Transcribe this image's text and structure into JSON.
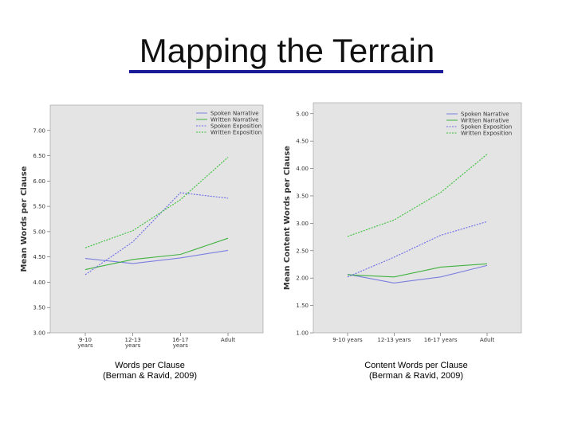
{
  "slide": {
    "title": "Mapping the Terrain"
  },
  "colors": {
    "spoken_narrative": "#7b7fe0",
    "written_narrative": "#3fb23f",
    "spoken_exposition": "#6a6ae8",
    "written_exposition": "#38c038",
    "plot_background": "#e4e4e4",
    "title_underline": "#1a1a99"
  },
  "chart_data": [
    {
      "type": "line",
      "title": "",
      "ylabel": "Mean Words per Clause",
      "xlabel": "",
      "categories": [
        "9-10 years",
        "12-13 years",
        "16-17 years",
        "Adult"
      ],
      "ylim": [
        3.0,
        7.5
      ],
      "yticks": [
        "3.00",
        "3.50",
        "4.00",
        "4.50",
        "5.00",
        "5.50",
        "6.00",
        "6.50",
        "7.00"
      ],
      "grid": false,
      "legend_position": "top-right",
      "series": [
        {
          "name": "Spoken Narrative",
          "style": "solid",
          "values": [
            4.47,
            4.37,
            4.48,
            4.63
          ]
        },
        {
          "name": "Written Narrative",
          "style": "solid",
          "values": [
            4.25,
            4.45,
            4.55,
            4.87
          ]
        },
        {
          "name": "Spoken Exposition",
          "style": "dashed",
          "values": [
            4.15,
            4.8,
            5.77,
            5.66
          ]
        },
        {
          "name": "Written Exposition",
          "style": "dashed",
          "values": [
            4.68,
            5.02,
            5.63,
            6.47
          ]
        }
      ]
    },
    {
      "type": "line",
      "title": "",
      "ylabel": "Mean Content Words per Clause",
      "xlabel": "",
      "categories": [
        "9-10 years",
        "12-13 years",
        "16-17 years",
        "Adult"
      ],
      "ylim": [
        1.0,
        5.2
      ],
      "yticks": [
        "1.00",
        "1.50",
        "2.00",
        "2.50",
        "3.00",
        "3.50",
        "4.00",
        "4.50",
        "5.00"
      ],
      "grid": false,
      "legend_position": "top-right",
      "series": [
        {
          "name": "Spoken Narrative",
          "style": "solid",
          "values": [
            2.07,
            1.91,
            2.02,
            2.23
          ]
        },
        {
          "name": "Written Narrative",
          "style": "solid",
          "values": [
            2.06,
            2.02,
            2.2,
            2.26
          ]
        },
        {
          "name": "Spoken Exposition",
          "style": "dashed",
          "values": [
            2.02,
            2.38,
            2.78,
            3.03
          ]
        },
        {
          "name": "Written Exposition",
          "style": "dashed",
          "values": [
            2.76,
            3.06,
            3.56,
            4.26
          ]
        }
      ]
    }
  ],
  "captions": {
    "left": {
      "line1": "Words per Clause",
      "line2": "(Berman & Ravid, 2009)"
    },
    "right": {
      "line1": "Content Words per Clause",
      "line2": "(Berman & Ravid, 2009)"
    }
  }
}
